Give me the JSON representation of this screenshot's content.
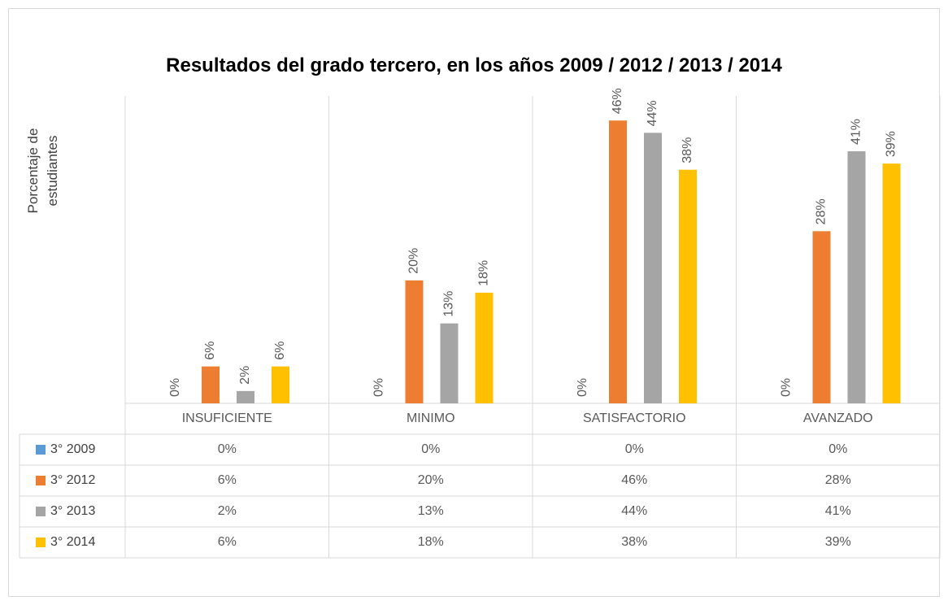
{
  "chart_data": {
    "type": "bar",
    "title": "Resultados del grado tercero, en los años 2009 / 2012 / 2013 / 2014",
    "y_label": "Porcentaje de estudiantes",
    "categories": [
      "INSUFICIENTE",
      "MINIMO",
      "SATISFACTORIO",
      "AVANZADO"
    ],
    "ylim": [
      0,
      50
    ],
    "data_table": true,
    "series": [
      {
        "name": "3° 2009",
        "color": "#5b9bd5",
        "values": [
          0,
          0,
          0,
          0
        ],
        "value_labels": [
          "0%",
          "0%",
          "0%",
          "0%"
        ]
      },
      {
        "name": "3° 2012",
        "color": "#ed7d31",
        "values": [
          6,
          20,
          46,
          28
        ],
        "value_labels": [
          "6%",
          "20%",
          "46%",
          "28%"
        ]
      },
      {
        "name": "3° 2013",
        "color": "#a5a5a5",
        "values": [
          2,
          13,
          44,
          41
        ],
        "value_labels": [
          "2%",
          "13%",
          "44%",
          "41%"
        ]
      },
      {
        "name": "3° 2014",
        "color": "#ffc000",
        "values": [
          6,
          18,
          38,
          39
        ],
        "value_labels": [
          "6%",
          "18%",
          "38%",
          "39%"
        ]
      }
    ]
  }
}
